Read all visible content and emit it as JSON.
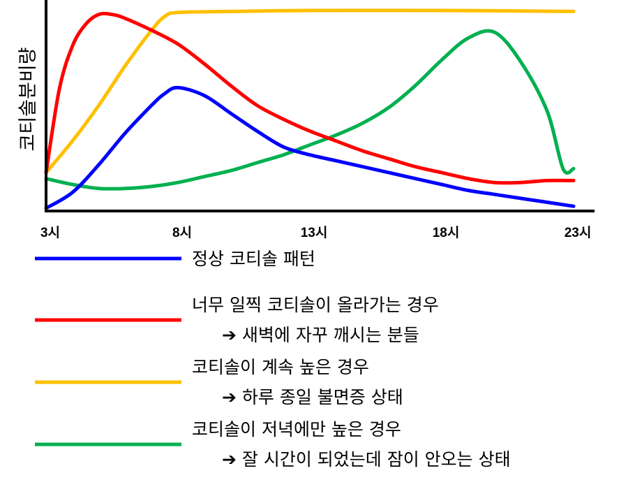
{
  "chart_data": {
    "type": "line",
    "title": "",
    "xlabel": "",
    "ylabel": "코티솔분비량",
    "x_ticks": [
      "3시",
      "8시",
      "13시",
      "18시",
      "23시"
    ],
    "x_range": [
      3,
      23
    ],
    "y_range": [
      0,
      100
    ],
    "series": [
      {
        "name": "정상 코티솔 패턴",
        "description": "",
        "color": "#0000FF",
        "points": [
          [
            3,
            0
          ],
          [
            4,
            8
          ],
          [
            5,
            22
          ],
          [
            6,
            38
          ],
          [
            7,
            52
          ],
          [
            7.5,
            58
          ],
          [
            8,
            61
          ],
          [
            9,
            57
          ],
          [
            10,
            48
          ],
          [
            11,
            39
          ],
          [
            12,
            31
          ],
          [
            13,
            27
          ],
          [
            14,
            24
          ],
          [
            15,
            21
          ],
          [
            16,
            18
          ],
          [
            17,
            15
          ],
          [
            18,
            12
          ],
          [
            19,
            9
          ],
          [
            20,
            7
          ],
          [
            21,
            5
          ],
          [
            22,
            3
          ],
          [
            23,
            1
          ]
        ]
      },
      {
        "name": "너무 일찍 코티솔이 올라가는 경우",
        "description": "➔ 새벽에 자꾸 깨시는 분들",
        "color": "#FF0000",
        "points": [
          [
            3,
            18
          ],
          [
            3.5,
            60
          ],
          [
            4,
            82
          ],
          [
            4.5,
            93
          ],
          [
            5,
            98
          ],
          [
            5.5,
            98
          ],
          [
            6,
            96
          ],
          [
            7,
            90
          ],
          [
            8,
            83
          ],
          [
            9,
            73
          ],
          [
            10,
            62
          ],
          [
            11,
            52
          ],
          [
            12,
            45
          ],
          [
            13,
            39
          ],
          [
            14,
            34
          ],
          [
            15,
            29
          ],
          [
            16,
            25
          ],
          [
            17,
            21
          ],
          [
            18,
            18
          ],
          [
            19,
            15
          ],
          [
            20,
            13
          ],
          [
            21,
            13
          ],
          [
            22,
            14
          ],
          [
            23,
            14
          ]
        ]
      },
      {
        "name": "코티솔이 계속 높은 경우",
        "description": "➔ 하루 종일 불면증 상태",
        "color": "#FFC000",
        "points": [
          [
            3,
            18
          ],
          [
            4,
            34
          ],
          [
            5,
            52
          ],
          [
            6,
            72
          ],
          [
            7,
            90
          ],
          [
            7.5,
            97
          ],
          [
            8,
            99
          ],
          [
            10,
            99.5
          ],
          [
            13,
            100
          ],
          [
            18,
            100
          ],
          [
            23,
            99.5
          ]
        ]
      },
      {
        "name": "코티솔이 저녁에만 높은 경우",
        "description": "➔ 잘 시간이 되었는데 잠이 안오는 상태",
        "color": "#00B050",
        "points": [
          [
            3,
            15
          ],
          [
            4,
            12
          ],
          [
            5,
            10
          ],
          [
            6,
            10
          ],
          [
            7,
            11
          ],
          [
            8,
            13
          ],
          [
            9,
            16
          ],
          [
            10,
            19
          ],
          [
            11,
            23
          ],
          [
            12,
            27
          ],
          [
            13,
            32
          ],
          [
            14,
            37
          ],
          [
            15,
            43
          ],
          [
            16,
            51
          ],
          [
            17,
            62
          ],
          [
            18,
            75
          ],
          [
            19,
            86
          ],
          [
            20,
            89
          ],
          [
            21,
            74
          ],
          [
            22,
            49
          ],
          [
            22.6,
            20
          ],
          [
            23,
            20
          ]
        ]
      }
    ]
  }
}
